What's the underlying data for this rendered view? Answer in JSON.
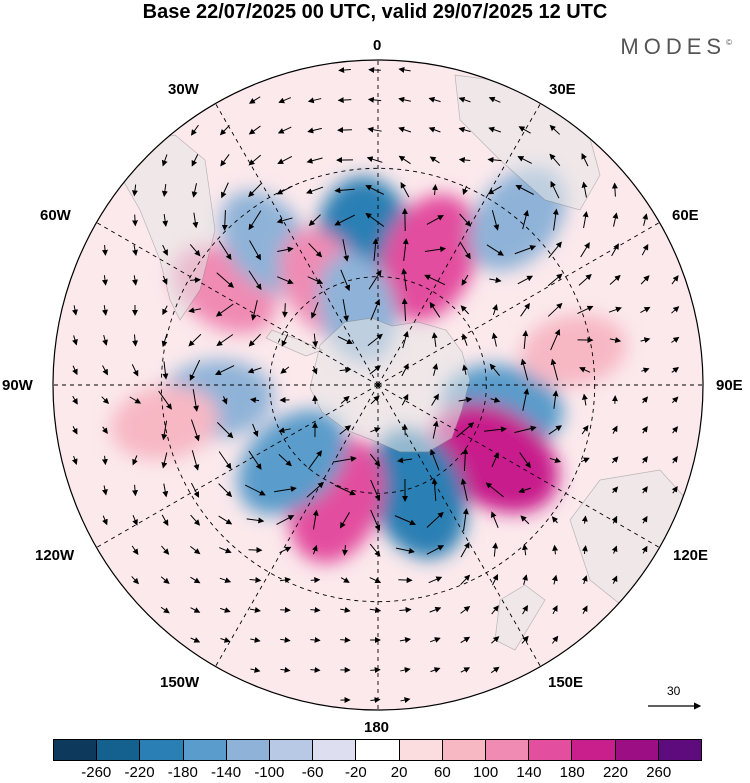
{
  "title": "Base 22/07/2025 00 UTC, valid 29/07/2025 12 UTC",
  "brand": "MODES",
  "brand_mark": "©",
  "longitude_labels": {
    "top": "0",
    "top_right": "30E",
    "right_upper": "60E",
    "right": "90E",
    "right_lower": "120E",
    "bottom_right": "150E",
    "bottom": "180",
    "bottom_left": "150W",
    "left_lower": "120W",
    "left": "90W",
    "left_upper": "60W",
    "top_left": "30W"
  },
  "vector_scale_label": "30",
  "colorbar": {
    "colors": [
      "#0d3a5c",
      "#14618f",
      "#2a7fb4",
      "#5a9ccb",
      "#8fb3d8",
      "#b8c9e5",
      "#dddff0",
      "#ffffff",
      "#fbdde0",
      "#f7b8c4",
      "#f08bb4",
      "#e34e9f",
      "#c81f8c",
      "#9c0f84",
      "#5e0b7e"
    ],
    "ticks": [
      "-260",
      "-220",
      "-180",
      "-140",
      "-100",
      "-60",
      "-20",
      "20",
      "60",
      "100",
      "140",
      "180",
      "220",
      "260"
    ]
  },
  "anomaly_centers": [
    {
      "lon": -5,
      "lat": -52,
      "value": -240,
      "color": "#2a7fb4"
    },
    {
      "lon": 22,
      "lat": -52,
      "value": 190,
      "color": "#e34e9f"
    },
    {
      "lon": 100,
      "lat": -55,
      "value": -150,
      "color": "#5a9ccb"
    },
    {
      "lon": 122,
      "lat": -52,
      "value": 220,
      "color": "#c81f8c"
    },
    {
      "lon": 160,
      "lat": -58,
      "value": -200,
      "color": "#2a7fb4"
    },
    {
      "lon": -160,
      "lat": -56,
      "value": 180,
      "color": "#e34e9f"
    },
    {
      "lon": -132,
      "lat": -58,
      "value": -160,
      "color": "#5a9ccb"
    },
    {
      "lon": -95,
      "lat": -45,
      "value": -120,
      "color": "#8fb3d8"
    },
    {
      "lon": -58,
      "lat": -40,
      "value": 110,
      "color": "#f08bb4"
    },
    {
      "lon": -38,
      "lat": -40,
      "value": -120,
      "color": "#8fb3d8"
    },
    {
      "lon": -28,
      "lat": -58,
      "value": 120,
      "color": "#f08bb4"
    },
    {
      "lon": 40,
      "lat": -30,
      "value": -130,
      "color": "#8fb3d8"
    },
    {
      "lon": -100,
      "lat": -30,
      "value": 90,
      "color": "#f7b8c4"
    },
    {
      "lon": 80,
      "lat": -35,
      "value": 80,
      "color": "#f7b8c4"
    },
    {
      "lon": -15,
      "lat": -68,
      "value": -110,
      "color": "#8fb3d8"
    }
  ]
}
